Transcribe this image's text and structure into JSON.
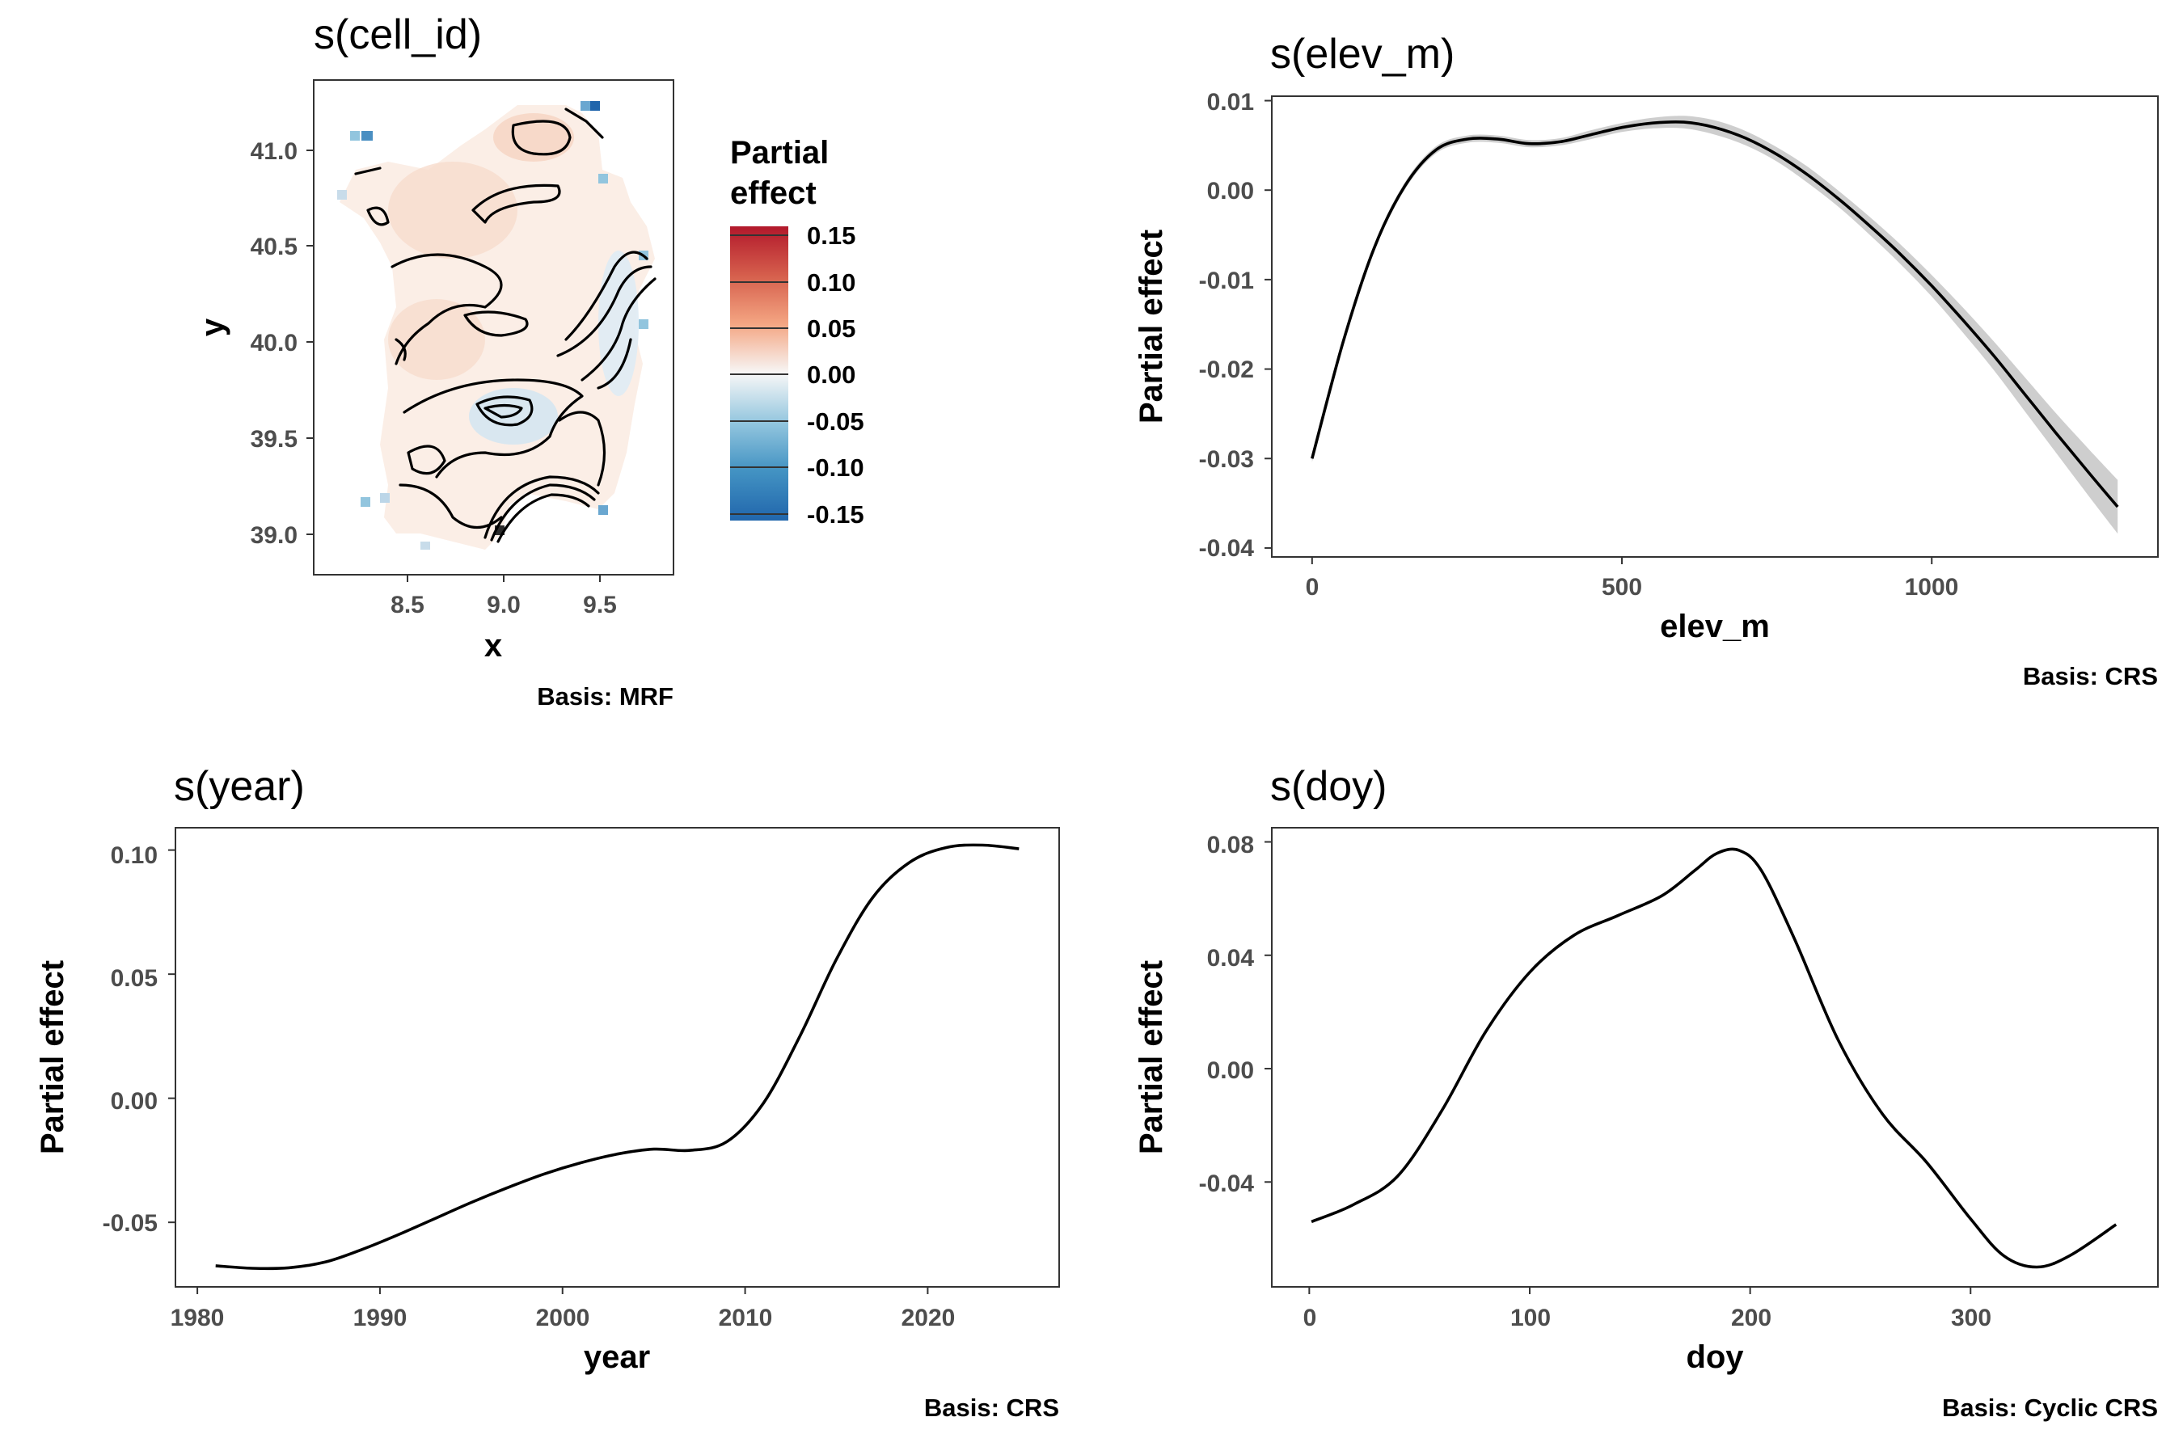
{
  "chart_data": [
    {
      "id": "cell",
      "type": "heatmap",
      "title": "s(cell_id)",
      "xlabel": "x",
      "ylabel": "y",
      "caption": "Basis: MRF",
      "xlim": [
        8.05,
        9.85
      ],
      "ylim": [
        38.85,
        41.33
      ],
      "xticks": [
        8.5,
        9.0,
        9.5
      ],
      "xtick_labels": [
        "8.5",
        "9.0",
        "9.5"
      ],
      "yticks": [
        39.0,
        39.5,
        40.0,
        40.5,
        41.0
      ],
      "ytick_labels": [
        "39.0",
        "39.5",
        "40.0",
        "40.5",
        "41.0"
      ],
      "legend": {
        "title": [
          "Partial",
          "effect"
        ],
        "placement": "right",
        "range": [
          -0.15,
          0.15
        ],
        "breaks": [
          0.15,
          0.1,
          0.05,
          0.0,
          -0.05,
          -0.1,
          -0.15
        ],
        "labels": [
          "0.15",
          "0.10",
          "0.05",
          "0.00",
          "-0.05",
          "-0.10",
          "-0.15"
        ],
        "colors": [
          "#b2182b",
          "#d6604d",
          "#f4a582",
          "#f7f7f7",
          "#92c5de",
          "#4393c3",
          "#2166ac"
        ]
      }
    },
    {
      "id": "elev",
      "type": "line",
      "title": "s(elev_m)",
      "xlabel": "elev_m",
      "ylabel": "Partial effect",
      "caption": "Basis: CRS",
      "xlim": [
        -65,
        1365
      ],
      "ylim": [
        -0.041,
        0.0105
      ],
      "xticks": [
        0,
        500,
        1000
      ],
      "xtick_labels": [
        "0",
        "500",
        "1000"
      ],
      "yticks": [
        0.01,
        0.0,
        -0.01,
        -0.02,
        -0.03,
        -0.04
      ],
      "ytick_labels": [
        "0.01",
        "0.00",
        "-0.01",
        "-0.02",
        "-0.03",
        "-0.04"
      ],
      "x": [
        0,
        50,
        100,
        150,
        200,
        250,
        300,
        350,
        400,
        450,
        500,
        550,
        600,
        650,
        700,
        750,
        800,
        850,
        900,
        950,
        1000,
        1050,
        1100,
        1150,
        1200,
        1250,
        1300
      ],
      "y": [
        -0.03,
        -0.017,
        -0.0065,
        0.0005,
        0.0045,
        0.0057,
        0.0057,
        0.0052,
        0.0054,
        0.0062,
        0.007,
        0.0075,
        0.0076,
        0.007,
        0.0058,
        0.004,
        0.0017,
        -0.001,
        -0.004,
        -0.0072,
        -0.0107,
        -0.0145,
        -0.0185,
        -0.0228,
        -0.0271,
        -0.0313,
        -0.0354
      ],
      "ci_half_width": [
        0.0004,
        0.0004,
        0.0004,
        0.0004,
        0.0004,
        0.0004,
        0.0004,
        0.0004,
        0.0004,
        0.0005,
        0.0005,
        0.0006,
        0.0007,
        0.0008,
        0.0008,
        0.0008,
        0.0009,
        0.0009,
        0.001,
        0.0011,
        0.0012,
        0.0014,
        0.0016,
        0.0019,
        0.0022,
        0.0026,
        0.003
      ]
    },
    {
      "id": "year",
      "type": "line",
      "title": "s(year)",
      "xlabel": "year",
      "ylabel": "Partial effect",
      "caption": "Basis: CRS",
      "xlim": [
        1978.8,
        2027.2
      ],
      "ylim": [
        -0.076,
        0.109
      ],
      "xticks": [
        1980,
        1990,
        2000,
        2010,
        2020
      ],
      "xtick_labels": [
        "1980",
        "1990",
        "2000",
        "2010",
        "2020"
      ],
      "yticks": [
        0.1,
        0.05,
        0.0,
        -0.05
      ],
      "ytick_labels": [
        "0.10",
        "0.05",
        "0.00",
        "-0.05"
      ],
      "x": [
        1981,
        1983,
        1985,
        1987,
        1989,
        1991,
        1993,
        1995,
        1997,
        1999,
        2001,
        2003,
        2005,
        2007,
        2009,
        2011,
        2013,
        2015,
        2017,
        2019,
        2021,
        2023,
        2025
      ],
      "y": [
        -0.0675,
        -0.0685,
        -0.0683,
        -0.066,
        -0.061,
        -0.055,
        -0.0485,
        -0.042,
        -0.036,
        -0.0305,
        -0.026,
        -0.0225,
        -0.0205,
        -0.021,
        -0.0175,
        -0.002,
        0.025,
        0.056,
        0.081,
        0.095,
        0.101,
        0.102,
        0.1005
      ]
    },
    {
      "id": "doy",
      "type": "line",
      "title": "s(doy)",
      "xlabel": "doy",
      "ylabel": "Partial effect",
      "caption": "Basis: Cyclic CRS",
      "xlim": [
        -17,
        385
      ],
      "ylim": [
        -0.077,
        0.085
      ],
      "xticks": [
        0,
        100,
        200,
        300
      ],
      "xtick_labels": [
        "0",
        "100",
        "200",
        "300"
      ],
      "yticks": [
        0.08,
        0.04,
        0.0,
        -0.04
      ],
      "ytick_labels": [
        "0.08",
        "0.04",
        "0.00",
        "-0.04"
      ],
      "x": [
        1,
        20,
        40,
        60,
        80,
        100,
        120,
        140,
        160,
        175,
        185,
        195,
        205,
        220,
        240,
        260,
        280,
        300,
        315,
        330,
        345,
        366
      ],
      "y": [
        -0.054,
        -0.048,
        -0.038,
        -0.015,
        0.013,
        0.034,
        0.047,
        0.054,
        0.061,
        0.07,
        0.076,
        0.077,
        0.07,
        0.046,
        0.01,
        -0.016,
        -0.033,
        -0.053,
        -0.066,
        -0.07,
        -0.066,
        -0.055
      ]
    }
  ]
}
